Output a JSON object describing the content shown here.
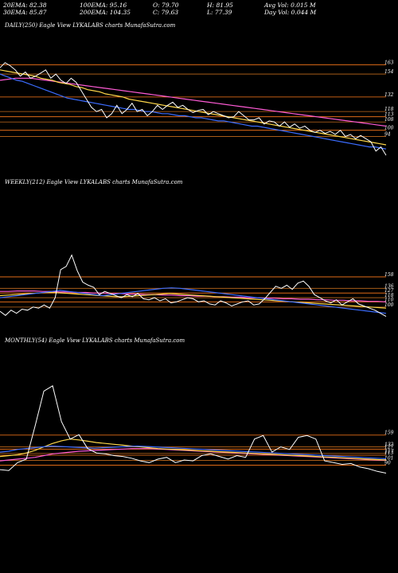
{
  "stats": {
    "row1": [
      {
        "label": "20EMA:",
        "value": "82.38"
      },
      {
        "label": "100EMA:",
        "value": "95.16"
      },
      {
        "label": "O:",
        "value": "79.70"
      },
      {
        "label": "H:",
        "value": "81.95"
      },
      {
        "label": "Avg Vol:",
        "value": "0.015 M"
      }
    ],
    "row2": [
      {
        "label": "30EMA:",
        "value": "85.87"
      },
      {
        "label": "200EMA:",
        "value": "104.35"
      },
      {
        "label": "C:",
        "value": "79.63"
      },
      {
        "label": "L:",
        "value": "77.39"
      },
      {
        "label": "Day Vol:",
        "value": "0.044  M"
      }
    ]
  },
  "colors": {
    "background": "#000000",
    "price": "#ffffff",
    "ema_short": "#3b6cff",
    "ema_mid": "#ffd84a",
    "ema_long": "#ff5bd6",
    "level": "#c06a1c",
    "level_bright": "#ff7a1a"
  },
  "chart_data": [
    {
      "type": "line",
      "title": "DAILY(250)  Eagle   View  LYKALABS charts MunafaSutra.com",
      "xlabel": "",
      "ylabel": "",
      "ylim": [
        60,
        190
      ],
      "levels": [
        "163",
        "154",
        "132",
        "118",
        "113",
        "108",
        "100",
        "94"
      ],
      "series": [
        {
          "values": [
            160,
            165,
            162,
            158,
            152,
            156,
            150,
            152,
            155,
            158,
            150,
            154,
            148,
            145,
            150,
            146,
            138,
            130,
            122,
            118,
            120,
            112,
            116,
            124,
            116,
            120,
            126,
            118,
            120,
            114,
            118,
            124,
            120,
            124,
            127,
            122,
            124,
            120,
            117,
            119,
            120,
            115,
            118,
            116,
            114,
            112,
            113,
            118,
            114,
            110,
            110,
            112,
            106,
            109,
            108,
            104,
            108,
            103,
            106,
            102,
            104,
            100,
            98,
            100,
            97,
            99,
            96,
            100,
            94,
            96,
            92,
            95,
            92,
            89,
            80,
            84,
            76
          ]
        },
        {
          "values": [
            154,
            152,
            150,
            148,
            147,
            145,
            143,
            141,
            139,
            137,
            135,
            133,
            131,
            130,
            129,
            128,
            127,
            126,
            125,
            124,
            123,
            122,
            121,
            120,
            120,
            119,
            118,
            118,
            117,
            116,
            116,
            115,
            114,
            114,
            113,
            112,
            112,
            111,
            110,
            109,
            109,
            108,
            107,
            106,
            105,
            104,
            104,
            103,
            102,
            101,
            100,
            99,
            98,
            97,
            96,
            95,
            94,
            93,
            92,
            91,
            90,
            89,
            88,
            87,
            86,
            85,
            84,
            84,
            83,
            82
          ]
        },
        {
          "values": [
            158,
            157,
            156,
            155,
            154,
            153,
            152,
            150,
            149,
            148,
            146,
            145,
            144,
            142,
            141,
            139,
            138,
            137,
            135,
            134,
            133,
            132,
            130,
            129,
            128,
            127,
            126,
            125,
            124,
            123,
            122,
            121,
            120,
            119,
            118,
            117,
            116,
            115,
            114,
            113,
            112,
            111,
            110,
            109,
            108,
            107,
            106,
            105,
            104,
            103,
            102,
            101,
            100,
            99,
            98,
            97,
            96,
            95,
            94,
            93,
            92,
            91,
            90,
            89,
            88,
            87,
            86
          ]
        },
        {
          "values": [
            148,
            149,
            150,
            150,
            150,
            149,
            148,
            147,
            146,
            145,
            144,
            143,
            142,
            141,
            140,
            139,
            138,
            137,
            136,
            135,
            134,
            133,
            132,
            131,
            130,
            129,
            128,
            127,
            126,
            125,
            124,
            123,
            122,
            121,
            120,
            119,
            118,
            117,
            116,
            115,
            114,
            113,
            112,
            111,
            110,
            109,
            108,
            107,
            106,
            105,
            104
          ]
        }
      ]
    },
    {
      "type": "line",
      "title": "WEEKLY(212)  Eagle   View  LYKALABS charts MunafaSutra.com",
      "xlabel": "",
      "ylabel": "",
      "ylim": [
        60,
        320
      ],
      "levels": [
        "158",
        "136",
        "127",
        "118",
        "110",
        "100"
      ],
      "series": [
        {
          "values": [
            92,
            84,
            94,
            88,
            96,
            94,
            100,
            98,
            104,
            98,
            118,
            172,
            178,
            200,
            170,
            148,
            142,
            138,
            124,
            130,
            126,
            122,
            118,
            124,
            120,
            126,
            116,
            114,
            118,
            112,
            116,
            108,
            110,
            114,
            118,
            116,
            110,
            112,
            106,
            104,
            112,
            108,
            102,
            106,
            110,
            112,
            104,
            106,
            116,
            128,
            140,
            136,
            142,
            134,
            146,
            150,
            140,
            124,
            118,
            112,
            108,
            114,
            104,
            110,
            116,
            106,
            102,
            98,
            94,
            88,
            82
          ]
        },
        {
          "values": [
            118,
            120,
            122,
            124,
            126,
            128,
            130,
            132,
            130,
            128,
            126,
            124,
            122,
            124,
            126,
            128,
            130,
            132,
            134,
            136,
            137,
            136,
            134,
            132,
            130,
            128,
            126,
            124,
            122,
            120,
            118,
            116,
            114,
            112,
            110,
            108,
            106,
            104,
            102,
            100,
            98,
            96,
            94,
            92,
            90,
            88
          ]
        },
        {
          "values": [
            122,
            123,
            124,
            125,
            126,
            127,
            128,
            128,
            127,
            126,
            125,
            124,
            123,
            122,
            121,
            120,
            120,
            121,
            122,
            123,
            124,
            125,
            126,
            125,
            124,
            123,
            122,
            121,
            120,
            119,
            118,
            117,
            116,
            115,
            114,
            113,
            112,
            111,
            110,
            109,
            108,
            107,
            106,
            105,
            104,
            103,
            102,
            101,
            100,
            99,
            98
          ]
        },
        {
          "values": [
            130,
            130,
            131,
            131,
            131,
            130,
            130,
            129,
            129,
            128,
            128,
            127,
            127,
            126,
            126,
            125,
            125,
            124,
            124,
            123,
            123,
            122,
            122,
            121,
            121,
            120,
            120,
            119,
            119,
            118,
            118,
            117,
            117,
            116,
            116,
            115,
            115,
            114,
            114,
            113,
            113,
            112,
            112,
            111,
            111,
            110
          ]
        }
      ]
    },
    {
      "type": "line",
      "title": "MONTHLY(54)  Eagle   View  LYKALABS charts MunafaSutra.com",
      "xlabel": "",
      "ylabel": "",
      "ylim": [
        40,
        350
      ],
      "levels": [
        "159",
        "132",
        "127",
        "117",
        "113",
        "101",
        "90"
      ],
      "series": [
        {
          "values": [
            80,
            78,
            96,
            104,
            180,
            260,
            272,
            190,
            150,
            160,
            128,
            118,
            116,
            112,
            110,
            106,
            100,
            96,
            104,
            108,
            96,
            102,
            100,
            112,
            116,
            110,
            104,
            112,
            108,
            150,
            158,
            120,
            132,
            126,
            154,
            158,
            150,
            100,
            96,
            92,
            94,
            86,
            82,
            76,
            72
          ]
        },
        {
          "values": [
            120,
            122,
            126,
            128,
            130,
            132,
            134,
            133,
            132,
            131,
            130,
            129,
            130,
            131,
            132,
            133,
            134,
            133,
            132,
            131,
            130,
            129,
            128,
            127,
            126,
            125,
            124,
            123,
            122,
            121,
            120,
            119,
            118,
            117,
            116,
            115,
            114,
            113,
            112,
            111,
            110,
            109,
            108,
            107,
            106,
            105
          ]
        },
        {
          "values": [
            110,
            112,
            114,
            118,
            124,
            132,
            140,
            146,
            150,
            148,
            145,
            142,
            140,
            138,
            136,
            134,
            132,
            130,
            128,
            127,
            126,
            125,
            124,
            123,
            122,
            121,
            120,
            119,
            118,
            117,
            116,
            115,
            114,
            113,
            112,
            111,
            110,
            109,
            108,
            107,
            106,
            105,
            104,
            103,
            102
          ]
        },
        {
          "values": [
            100,
            102,
            104,
            106,
            108,
            112,
            116,
            118,
            120,
            122,
            123,
            124,
            125,
            126,
            127,
            128,
            128,
            128,
            127,
            126,
            125,
            124,
            123,
            122,
            121,
            120,
            119,
            118,
            117,
            116,
            115,
            114,
            113,
            112,
            111,
            110,
            109,
            108,
            107,
            106,
            105,
            104,
            103,
            102,
            101
          ]
        }
      ]
    }
  ]
}
